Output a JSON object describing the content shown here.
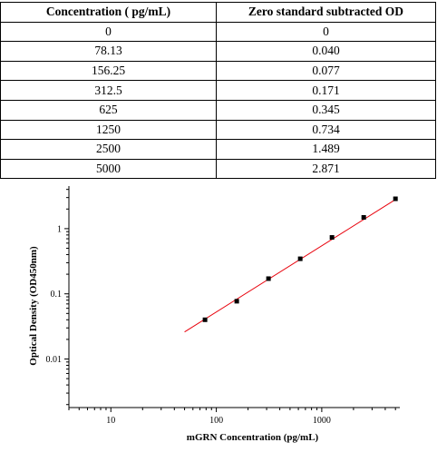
{
  "table": {
    "headers": [
      "Concentration ( pg/mL)",
      "Zero standard subtracted OD"
    ],
    "rows": [
      [
        "0",
        "0"
      ],
      [
        "78.13",
        "0.040"
      ],
      [
        "156.25",
        "0.077"
      ],
      [
        "312.5",
        "0.171"
      ],
      [
        "625",
        "0.345"
      ],
      [
        "1250",
        "0.734"
      ],
      [
        "2500",
        "1.489"
      ],
      [
        "5000",
        "2.871"
      ]
    ]
  },
  "chart_data": {
    "type": "scatter",
    "title": "",
    "xlabel": "mGRN Concentration (pg/mL)",
    "ylabel": "Optical Density (OD450nm)",
    "xscale": "log",
    "yscale": "log",
    "xlim": [
      4,
      5500
    ],
    "ylim": [
      0.0018,
      4.5
    ],
    "xticks": [
      10,
      100,
      1000
    ],
    "xtick_labels": [
      "10",
      "100",
      "1000"
    ],
    "yticks": [
      0.01,
      0.1,
      1
    ],
    "ytick_labels": [
      "0.01",
      "0.1",
      "1"
    ],
    "grid": false,
    "colors": {
      "points": "#000000",
      "fit_line": "#e8000b"
    },
    "series": [
      {
        "x": [
          78.13,
          156.25,
          312.5,
          625,
          1250,
          2500,
          5000
        ],
        "y": [
          0.04,
          0.077,
          0.171,
          0.345,
          0.734,
          1.489,
          2.871
        ]
      }
    ],
    "fit_line": {
      "x": [
        50,
        5000
      ],
      "y": [
        0.026,
        2.8
      ]
    }
  }
}
